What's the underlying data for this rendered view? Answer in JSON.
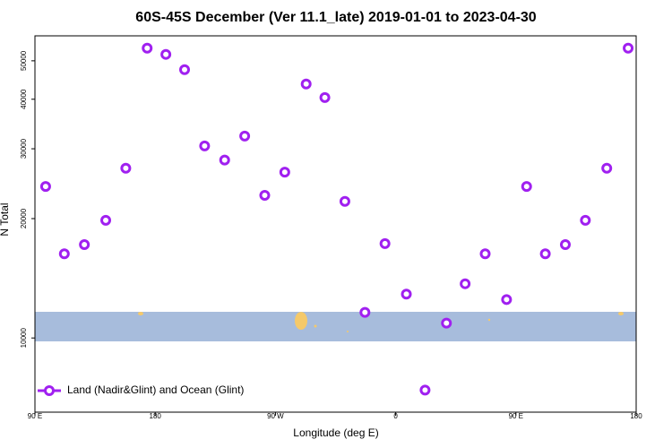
{
  "chart_data": {
    "type": "scatter",
    "title": "60S-45S December (Ver 11.1_late)   2019-01-01 to 2023-04-30",
    "x_label": "Longitude (deg E)",
    "y_label": "N Total",
    "y_log": true,
    "xlim": [
      90,
      540
    ],
    "ylim": [
      6500,
      57800
    ],
    "xticks": [
      {
        "value": 90,
        "label": "90 E"
      },
      180,
      {
        "value": 270,
        "label": "90 W"
      },
      {
        "value": 360,
        "label": "0"
      },
      {
        "value": 450,
        "label": "90 E"
      },
      {
        "value": 540,
        "label": "180"
      }
    ],
    "yticks": [
      10000,
      20000,
      30000,
      40000,
      50000
    ],
    "legend_position": "bottom-left",
    "series": [
      {
        "name": "Land (Nadir&Glint) and Ocean (Glint)",
        "color": "#a020f0",
        "x": [
          98,
          112,
          127,
          143,
          158,
          174,
          188,
          202,
          217,
          232,
          247,
          262,
          277,
          293,
          307,
          322,
          337,
          352,
          368,
          382,
          398,
          412,
          427,
          443,
          458,
          472,
          487,
          502,
          518,
          534
        ],
        "values": [
          24100,
          16300,
          17200,
          19800,
          26800,
          53800,
          51900,
          47500,
          30500,
          28100,
          32300,
          22900,
          26200,
          43700,
          40400,
          22100,
          11600,
          17300,
          12900,
          7390,
          10900,
          13700,
          16300,
          12500,
          24100,
          16300,
          17200,
          19800,
          26800,
          53800
        ]
      }
    ]
  }
}
